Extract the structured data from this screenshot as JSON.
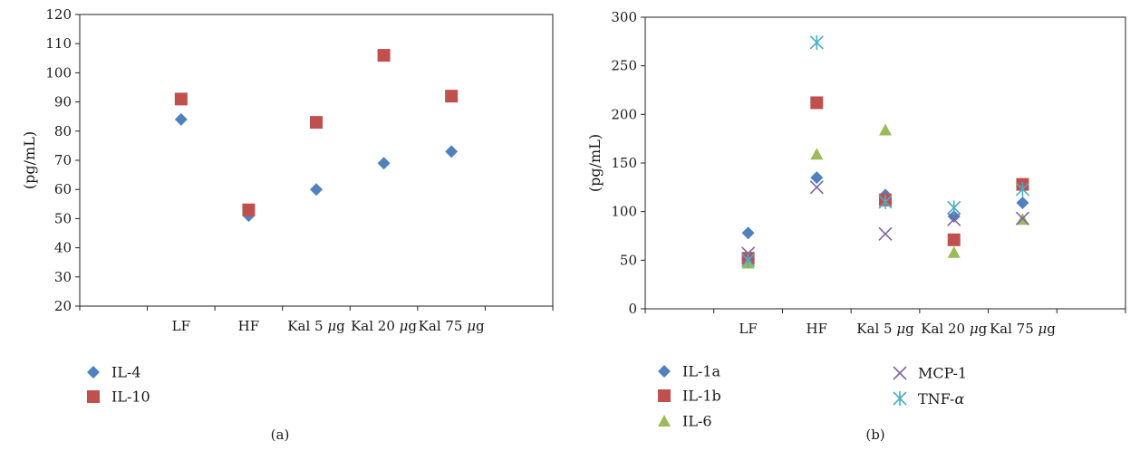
{
  "chart_data": [
    {
      "type": "scatter",
      "panel_label": "(a)",
      "ylabel": "(pg/mL)",
      "ylim": [
        20,
        120
      ],
      "yticks": [
        20,
        30,
        40,
        50,
        60,
        70,
        80,
        90,
        100,
        110,
        120
      ],
      "categories": [
        "LF",
        "HF",
        "Kal 5 μg",
        "Kal 20 μg",
        "Kal 75 μg"
      ],
      "legend_position": "bottom-left",
      "series": [
        {
          "name": "IL-4",
          "marker": "diamond",
          "color": "#4F81BD",
          "values": [
            84,
            51,
            60,
            69,
            73
          ]
        },
        {
          "name": "IL-10",
          "marker": "square",
          "color": "#C0504D",
          "values": [
            91,
            53,
            83,
            106,
            92
          ]
        }
      ]
    },
    {
      "type": "scatter",
      "panel_label": "(b)",
      "ylabel": "(pg/mL)",
      "ylim": [
        0,
        300
      ],
      "yticks": [
        0,
        50,
        100,
        150,
        200,
        250,
        300
      ],
      "categories": [
        "LF",
        "HF",
        "Kal 5 μg",
        "Kal 20 μg",
        "Kal 75 μg"
      ],
      "legend_position": "bottom",
      "series": [
        {
          "name": "IL-1a",
          "marker": "diamond",
          "color": "#4F81BD",
          "values": [
            78,
            135,
            117,
            95,
            109
          ]
        },
        {
          "name": "IL-1b",
          "marker": "square",
          "color": "#C0504D",
          "values": [
            52,
            212,
            112,
            71,
            128
          ]
        },
        {
          "name": "IL-6",
          "marker": "triangle",
          "color": "#9BBB59",
          "values": [
            47,
            159,
            184,
            58,
            92
          ]
        },
        {
          "name": "MCP-1",
          "marker": "x",
          "color": "#8064A2",
          "values": [
            57,
            125,
            77,
            92,
            93
          ]
        },
        {
          "name": "TNF-α",
          "marker": "star",
          "color": "#4BACC6",
          "values": [
            50,
            274,
            110,
            104,
            123
          ]
        }
      ]
    }
  ]
}
